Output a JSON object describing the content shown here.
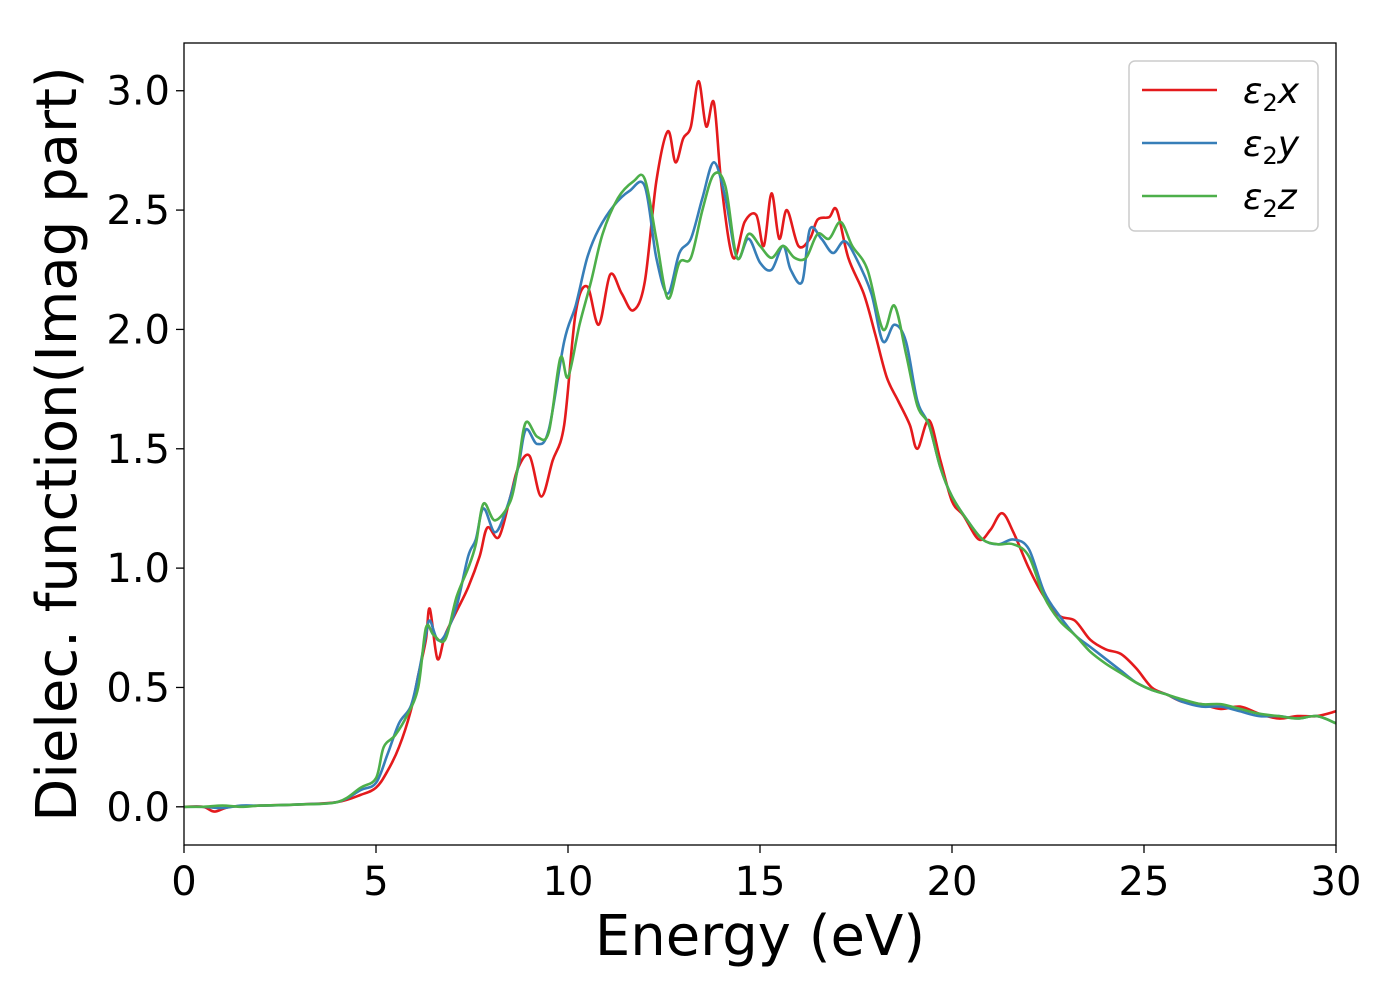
{
  "chart_data": {
    "type": "line",
    "xlabel": "Energy (eV)",
    "ylabel": "Dielec. function(Imag part)",
    "xlim": [
      0,
      30
    ],
    "ylim": [
      -0.16,
      3.2
    ],
    "xticks": [
      0,
      5,
      10,
      15,
      20,
      25,
      30
    ],
    "xtick_labels": [
      "0",
      "5",
      "10",
      "15",
      "20",
      "25",
      "30"
    ],
    "yticks": [
      0.0,
      0.5,
      1.0,
      1.5,
      2.0,
      2.5,
      3.0
    ],
    "ytick_labels": [
      "0.0",
      "0.5",
      "1.0",
      "1.5",
      "2.0",
      "2.5",
      "3.0"
    ],
    "grid": false,
    "legend_position": "top-right",
    "series": [
      {
        "name": "ε2x",
        "legend_base": "ε",
        "legend_sub": "2",
        "legend_var": "x",
        "color": "#e41a1c",
        "points": [
          [
            0,
            0
          ],
          [
            0.5,
            0
          ],
          [
            0.8,
            -0.02
          ],
          [
            1.2,
            0
          ],
          [
            2,
            0.005
          ],
          [
            3,
            0.01
          ],
          [
            4,
            0.02
          ],
          [
            4.6,
            0.05
          ],
          [
            5,
            0.08
          ],
          [
            5.3,
            0.15
          ],
          [
            5.6,
            0.25
          ],
          [
            5.9,
            0.4
          ],
          [
            6.1,
            0.55
          ],
          [
            6.3,
            0.7
          ],
          [
            6.4,
            0.83
          ],
          [
            6.6,
            0.62
          ],
          [
            6.8,
            0.72
          ],
          [
            7.1,
            0.82
          ],
          [
            7.4,
            0.92
          ],
          [
            7.7,
            1.05
          ],
          [
            7.9,
            1.17
          ],
          [
            8.2,
            1.13
          ],
          [
            8.5,
            1.3
          ],
          [
            8.7,
            1.42
          ],
          [
            9,
            1.47
          ],
          [
            9.3,
            1.3
          ],
          [
            9.6,
            1.45
          ],
          [
            9.9,
            1.6
          ],
          [
            10.2,
            2.07
          ],
          [
            10.5,
            2.18
          ],
          [
            10.8,
            2.02
          ],
          [
            11.1,
            2.23
          ],
          [
            11.4,
            2.15
          ],
          [
            11.7,
            2.08
          ],
          [
            12,
            2.2
          ],
          [
            12.3,
            2.62
          ],
          [
            12.6,
            2.83
          ],
          [
            12.8,
            2.7
          ],
          [
            13,
            2.8
          ],
          [
            13.2,
            2.85
          ],
          [
            13.4,
            3.04
          ],
          [
            13.6,
            2.85
          ],
          [
            13.8,
            2.95
          ],
          [
            14,
            2.6
          ],
          [
            14.3,
            2.3
          ],
          [
            14.6,
            2.45
          ],
          [
            14.9,
            2.48
          ],
          [
            15.1,
            2.35
          ],
          [
            15.3,
            2.57
          ],
          [
            15.5,
            2.38
          ],
          [
            15.7,
            2.5
          ],
          [
            16,
            2.35
          ],
          [
            16.3,
            2.38
          ],
          [
            16.5,
            2.46
          ],
          [
            16.8,
            2.47
          ],
          [
            17,
            2.5
          ],
          [
            17.3,
            2.3
          ],
          [
            17.7,
            2.15
          ],
          [
            18,
            1.98
          ],
          [
            18.3,
            1.8
          ],
          [
            18.6,
            1.7
          ],
          [
            18.9,
            1.6
          ],
          [
            19.1,
            1.5
          ],
          [
            19.4,
            1.62
          ],
          [
            19.7,
            1.45
          ],
          [
            20,
            1.28
          ],
          [
            20.3,
            1.22
          ],
          [
            20.7,
            1.12
          ],
          [
            21,
            1.16
          ],
          [
            21.3,
            1.23
          ],
          [
            21.6,
            1.15
          ],
          [
            22,
            1.0
          ],
          [
            22.4,
            0.88
          ],
          [
            22.8,
            0.8
          ],
          [
            23.2,
            0.78
          ],
          [
            23.6,
            0.7
          ],
          [
            24,
            0.66
          ],
          [
            24.4,
            0.64
          ],
          [
            24.8,
            0.58
          ],
          [
            25.2,
            0.5
          ],
          [
            25.6,
            0.47
          ],
          [
            26,
            0.44
          ],
          [
            26.5,
            0.43
          ],
          [
            27,
            0.41
          ],
          [
            27.5,
            0.42
          ],
          [
            28,
            0.39
          ],
          [
            28.5,
            0.37
          ],
          [
            29,
            0.38
          ],
          [
            29.5,
            0.38
          ],
          [
            30,
            0.4
          ]
        ]
      },
      {
        "name": "ε2y",
        "legend_base": "ε",
        "legend_sub": "2",
        "legend_var": "y",
        "color": "#377eb8",
        "points": [
          [
            0,
            0
          ],
          [
            0.5,
            0
          ],
          [
            1,
            -0.005
          ],
          [
            1.5,
            0.005
          ],
          [
            2,
            0.005
          ],
          [
            3,
            0.01
          ],
          [
            4,
            0.02
          ],
          [
            4.6,
            0.07
          ],
          [
            5,
            0.1
          ],
          [
            5.3,
            0.22
          ],
          [
            5.6,
            0.35
          ],
          [
            5.9,
            0.42
          ],
          [
            6.1,
            0.55
          ],
          [
            6.3,
            0.72
          ],
          [
            6.4,
            0.78
          ],
          [
            6.6,
            0.7
          ],
          [
            6.8,
            0.72
          ],
          [
            7.1,
            0.84
          ],
          [
            7.4,
            1.05
          ],
          [
            7.6,
            1.12
          ],
          [
            7.8,
            1.25
          ],
          [
            8.1,
            1.15
          ],
          [
            8.4,
            1.25
          ],
          [
            8.7,
            1.42
          ],
          [
            8.9,
            1.58
          ],
          [
            9.2,
            1.52
          ],
          [
            9.5,
            1.58
          ],
          [
            9.9,
            1.95
          ],
          [
            10.2,
            2.1
          ],
          [
            10.5,
            2.3
          ],
          [
            10.8,
            2.42
          ],
          [
            11.2,
            2.52
          ],
          [
            11.6,
            2.58
          ],
          [
            12,
            2.6
          ],
          [
            12.3,
            2.3
          ],
          [
            12.6,
            2.15
          ],
          [
            12.9,
            2.32
          ],
          [
            13.2,
            2.38
          ],
          [
            13.5,
            2.55
          ],
          [
            13.8,
            2.7
          ],
          [
            14.1,
            2.55
          ],
          [
            14.4,
            2.3
          ],
          [
            14.7,
            2.38
          ],
          [
            15,
            2.28
          ],
          [
            15.3,
            2.25
          ],
          [
            15.6,
            2.35
          ],
          [
            15.8,
            2.25
          ],
          [
            16.1,
            2.2
          ],
          [
            16.3,
            2.42
          ],
          [
            16.6,
            2.38
          ],
          [
            16.9,
            2.32
          ],
          [
            17.2,
            2.37
          ],
          [
            17.5,
            2.3
          ],
          [
            17.9,
            2.15
          ],
          [
            18.2,
            1.95
          ],
          [
            18.5,
            2.02
          ],
          [
            18.8,
            1.95
          ],
          [
            19.1,
            1.7
          ],
          [
            19.4,
            1.6
          ],
          [
            19.7,
            1.42
          ],
          [
            20,
            1.3
          ],
          [
            20.4,
            1.2
          ],
          [
            20.8,
            1.12
          ],
          [
            21.2,
            1.1
          ],
          [
            21.6,
            1.12
          ],
          [
            22,
            1.08
          ],
          [
            22.4,
            0.9
          ],
          [
            22.8,
            0.8
          ],
          [
            23.2,
            0.72
          ],
          [
            23.6,
            0.67
          ],
          [
            24,
            0.62
          ],
          [
            24.4,
            0.57
          ],
          [
            24.8,
            0.52
          ],
          [
            25.2,
            0.49
          ],
          [
            25.6,
            0.47
          ],
          [
            26,
            0.44
          ],
          [
            26.5,
            0.42
          ],
          [
            27,
            0.42
          ],
          [
            27.5,
            0.4
          ],
          [
            28,
            0.38
          ],
          [
            28.5,
            0.38
          ],
          [
            29,
            0.37
          ],
          [
            29.5,
            0.38
          ],
          [
            30,
            0.35
          ]
        ]
      },
      {
        "name": "ε2z",
        "legend_base": "ε",
        "legend_sub": "2",
        "legend_var": "z",
        "color": "#4daf4a",
        "points": [
          [
            0,
            0
          ],
          [
            0.5,
            0
          ],
          [
            1,
            0.005
          ],
          [
            1.5,
            0
          ],
          [
            2,
            0.005
          ],
          [
            3,
            0.01
          ],
          [
            4,
            0.02
          ],
          [
            4.6,
            0.08
          ],
          [
            5,
            0.12
          ],
          [
            5.2,
            0.25
          ],
          [
            5.5,
            0.3
          ],
          [
            5.8,
            0.38
          ],
          [
            6.1,
            0.5
          ],
          [
            6.3,
            0.75
          ],
          [
            6.5,
            0.72
          ],
          [
            6.8,
            0.7
          ],
          [
            7.1,
            0.88
          ],
          [
            7.4,
            1.0
          ],
          [
            7.6,
            1.1
          ],
          [
            7.8,
            1.27
          ],
          [
            8.1,
            1.2
          ],
          [
            8.5,
            1.28
          ],
          [
            8.7,
            1.43
          ],
          [
            8.9,
            1.61
          ],
          [
            9.2,
            1.55
          ],
          [
            9.5,
            1.57
          ],
          [
            9.8,
            1.88
          ],
          [
            10,
            1.8
          ],
          [
            10.3,
            2.02
          ],
          [
            10.6,
            2.2
          ],
          [
            10.9,
            2.4
          ],
          [
            11.3,
            2.55
          ],
          [
            11.7,
            2.62
          ],
          [
            12,
            2.63
          ],
          [
            12.3,
            2.38
          ],
          [
            12.6,
            2.13
          ],
          [
            12.9,
            2.28
          ],
          [
            13.2,
            2.3
          ],
          [
            13.5,
            2.5
          ],
          [
            13.8,
            2.65
          ],
          [
            14.1,
            2.6
          ],
          [
            14.4,
            2.3
          ],
          [
            14.7,
            2.4
          ],
          [
            15,
            2.35
          ],
          [
            15.3,
            2.3
          ],
          [
            15.6,
            2.35
          ],
          [
            15.9,
            2.3
          ],
          [
            16.2,
            2.3
          ],
          [
            16.5,
            2.4
          ],
          [
            16.8,
            2.38
          ],
          [
            17.1,
            2.45
          ],
          [
            17.4,
            2.35
          ],
          [
            17.8,
            2.25
          ],
          [
            18.2,
            2.0
          ],
          [
            18.5,
            2.1
          ],
          [
            18.8,
            1.9
          ],
          [
            19.1,
            1.68
          ],
          [
            19.4,
            1.6
          ],
          [
            19.7,
            1.42
          ],
          [
            20,
            1.3
          ],
          [
            20.4,
            1.2
          ],
          [
            20.8,
            1.12
          ],
          [
            21.2,
            1.1
          ],
          [
            21.6,
            1.1
          ],
          [
            22,
            1.05
          ],
          [
            22.4,
            0.88
          ],
          [
            22.8,
            0.78
          ],
          [
            23.2,
            0.72
          ],
          [
            23.6,
            0.65
          ],
          [
            24,
            0.6
          ],
          [
            24.4,
            0.56
          ],
          [
            24.8,
            0.52
          ],
          [
            25.2,
            0.49
          ],
          [
            25.6,
            0.47
          ],
          [
            26,
            0.45
          ],
          [
            26.5,
            0.43
          ],
          [
            27,
            0.43
          ],
          [
            27.5,
            0.41
          ],
          [
            28,
            0.39
          ],
          [
            28.5,
            0.38
          ],
          [
            29,
            0.37
          ],
          [
            29.5,
            0.38
          ],
          [
            30,
            0.35
          ]
        ]
      }
    ]
  }
}
